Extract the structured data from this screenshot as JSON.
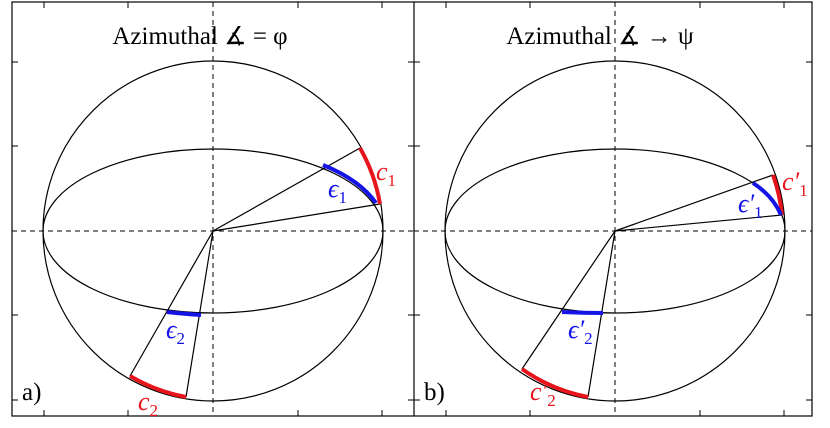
{
  "panels": [
    {
      "title": "Azimuthal ∡ = φ",
      "label": "a)",
      "arcs": [
        {
          "name": "c",
          "sub": "1"
        },
        {
          "name": "ϵ",
          "sub": "1"
        },
        {
          "name": "ϵ",
          "sub": "2"
        },
        {
          "name": "c",
          "sub": "2"
        }
      ]
    },
    {
      "title": "Azimuthal ∡ → ψ",
      "label": "b)",
      "arcs": [
        {
          "name": "c′",
          "sub": "1"
        },
        {
          "name": "ϵ′",
          "sub": "1"
        },
        {
          "name": "ϵ′",
          "sub": "2"
        },
        {
          "name": "c′",
          "sub": "2"
        }
      ]
    }
  ]
}
